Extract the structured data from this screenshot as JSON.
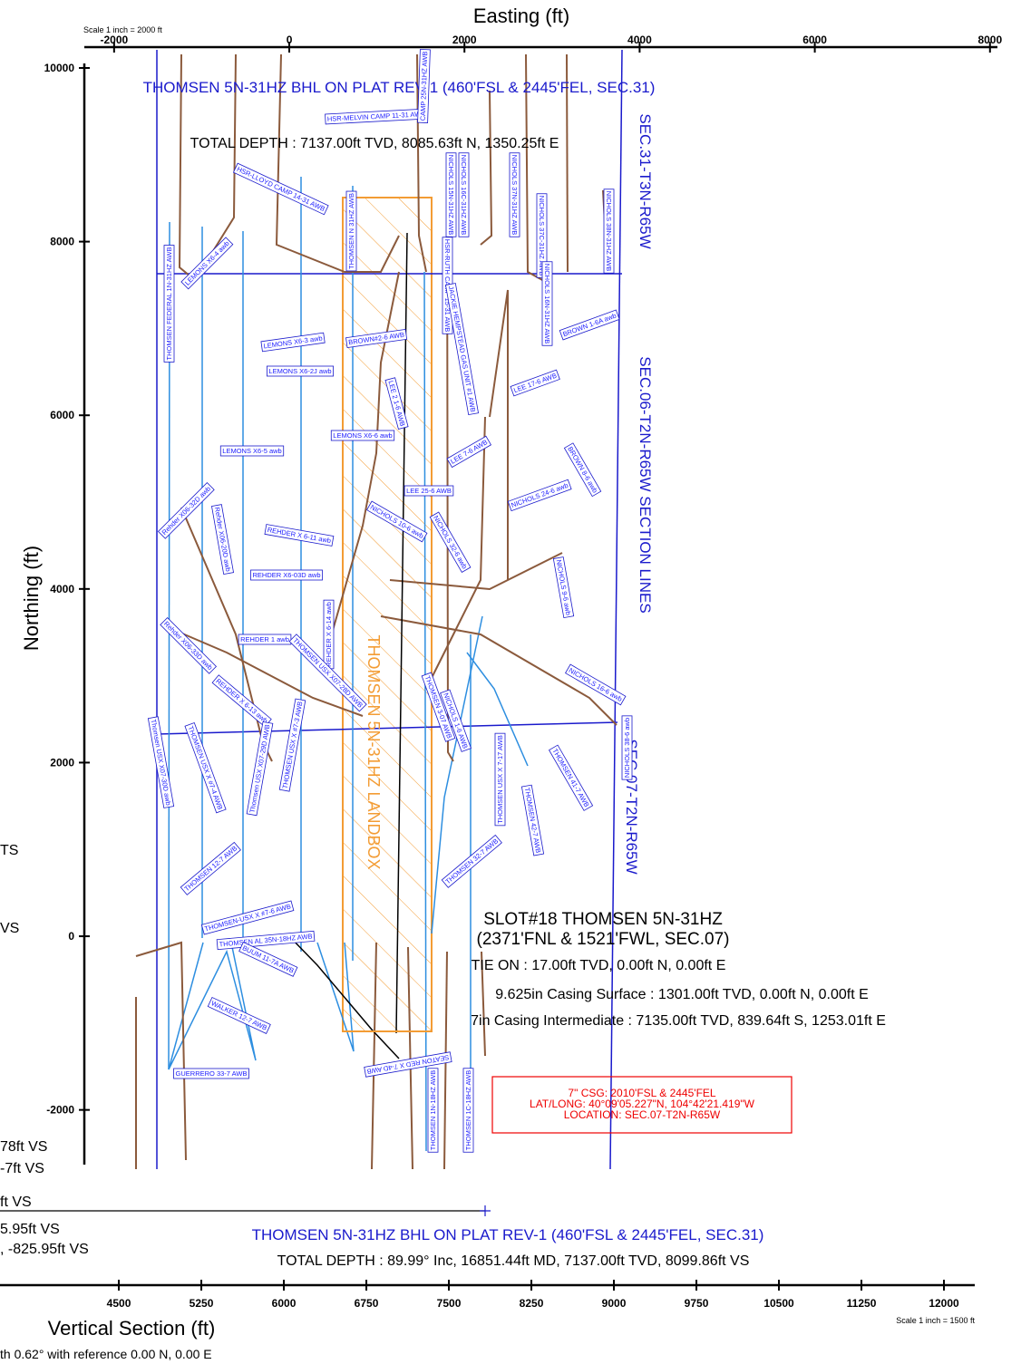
{
  "chart_data": [
    {
      "type": "plan",
      "x_label": "Easting (ft)",
      "y_label": "Northing (ft)",
      "scale_note": "Scale 1 inch = 2000 ft",
      "xlim": [
        -2340,
        8085
      ],
      "ylim": [
        -2630,
        10000
      ],
      "xticks": [
        -2000,
        0,
        2000,
        4000,
        6000,
        8000
      ],
      "yticks": [
        -2000,
        0,
        2000,
        4000,
        6000,
        8000,
        10000
      ],
      "annotations": [
        "THOMSEN 5N-31HZ BHL ON PLAT REV-1 (460'FSL & 2445'FEL, SEC.31)",
        "TOTAL DEPTH : 7137.00ft TVD, 8085.63ft N, 1350.25ft E",
        "SEC.31-T3N-R65W",
        "SEC.06-T2N-R65W SECTION LINES",
        "SEC.07-T2N-R65W",
        "THOMSEN 5N-31HZ LANDBOX",
        "SLOT#18 THOMSEN 5N-31HZ",
        "(2371'FNL & 1521'FWL, SEC.07)",
        "TIE ON : 17.00ft TVD, 0.00ft N, 0.00ft E",
        "9.625in Casing Surface : 1301.00ft TVD, 0.00ft N, 0.00ft E",
        "7in Casing Intermediate : 7135.00ft TVD, 839.64ft S, 1253.01ft E"
      ],
      "location_box": [
        "7\" CSG: 2010'FSL & 2445'FEL",
        "LAT/LONG: 40°09'05.227\"N, 104°42'21.419\"W",
        "LOCATION: SEC.07-T2N-R65W"
      ],
      "well_labels": [
        "HSR-MELVIN CAMP 11-31 AWB",
        "CAMP 25N-31HZ AWB",
        "HSR-LLOYD CAMP 14-31 AWB",
        "NICHOLS 15N-31HZ AWB",
        "NICHOLS 16C-31HZ AWB",
        "NICHOLS 37N-31HZ AWB",
        "NICHOLS 37C-31HZ AWB",
        "NICHOLS 38N-31HZ AWB",
        "THOMSEN N 31HZ AWB",
        "THOMSEN FEDERAL 1N-31HZ AWB",
        "LEMONS X6-4 awb",
        "HSR-RUTH CAMP 15-31 AWB",
        "JACKIE HEMPSTEAD GAS UNIT #1 AWB",
        "NICHOLS 16N-31HZ AWB",
        "BROWN 1-6A awb",
        "LEMONS X6-3 awb",
        "BROWN#2-6 AWB",
        "LEMONS X6-2J awb",
        "LEE 17-6 AWB",
        "LEE 2 1-6 AWB",
        "LEMONS X6-6 awb",
        "LEMONS X6-5 awb",
        "LEE 7-6 AWB",
        "BROWN 8-6 awb",
        "LEE 25-6 AWB",
        "NICHOLS 24-6 awb",
        "Rehder X06-32D awb",
        "Rehder X06-20D awb",
        "REHDER X 6-11 awb",
        "NICHOLS 32-6 awb",
        "NICHOLS 10-6 awb",
        "NICHOLS 9-6 awb",
        "REHDER X6-03D awb",
        "Rehder X06-33D awb",
        "REHDER 1 awb",
        "REHDER X 6-14 awb",
        "THOMSEN USX X07-28D AWB",
        "NICHOLS 16-6 awb",
        "REHDER X 6-13 awb",
        "THOMSEN USX X #7-3 AWB",
        "THOMSEN 3-07 AWB",
        "NICHOLS 1-6 AWB",
        "Thomsen USX X07-30D awb",
        "THOMSEN USX X #7-4 AWB",
        "Thomsen USX X07-29D AWB",
        "NICHOLS 38-6 awb",
        "THOMSEN 41-7 AWB",
        "THOMSEN USX X 7-17 AWB",
        "THOMSEN 42-7 AWB",
        "THOMSEN 12-7 AWB",
        "THOMSEN 32-7 AWB",
        "THOMSEN-USX X #7-6 AWB",
        "THOMSEN AL 35N-18HZ AWB",
        "BUUM 11-7A AWB",
        "WALKER 12-7 AWB",
        "GUERRERO 33-7 AWB",
        "SEATON RED X 7-4D AWB",
        "THOMSEN 1N-18HZ AWB",
        "THOMSEN 1C-18HZ AWB"
      ]
    },
    {
      "type": "section",
      "x_label": "Vertical Section (ft)",
      "scale_note": "Scale 1 inch = 1500 ft",
      "xlim": [
        3420,
        12280
      ],
      "xticks": [
        4500,
        5250,
        6000,
        6750,
        7500,
        8250,
        9000,
        9750,
        10500,
        11250,
        12000
      ],
      "annotations": [
        "THOMSEN 5N-31HZ BHL ON PLAT REV-1 (460'FSL & 2445'FEL, SEC.31)",
        "TOTAL DEPTH : 89.99° Inc, 16851.44ft MD, 7137.00ft TVD, 8099.86ft VS"
      ],
      "clipped_labels": [
        "TS",
        "VS",
        "78ft VS",
        "-7ft VS",
        "ft VS",
        "5.95ft VS",
        ", -825.95ft VS",
        "th 0.62° with reference 0.00 N, 0.00 E"
      ]
    }
  ]
}
